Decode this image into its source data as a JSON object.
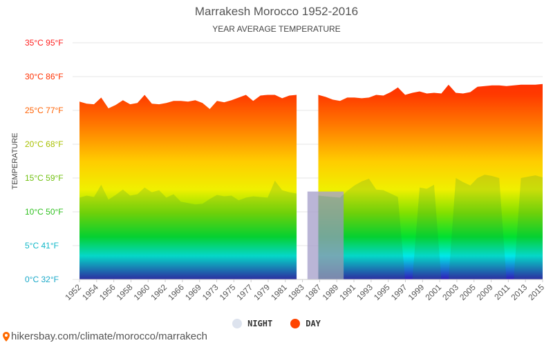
{
  "title": "Marrakesh Morocco 1952-2016",
  "subtitle": "YEAR AVERAGE TEMPERATURE",
  "legend": {
    "night": "NIGHT",
    "day": "DAY"
  },
  "source": "hikersbay.com/climate/morocco/marrakech",
  "colors": {
    "night_legend": "#dde3ee",
    "day_legend": "#ff4400",
    "gap_night": "#a9a3cc",
    "axis_text": "#555555"
  },
  "chart_data": {
    "type": "area",
    "ylabel": "TEMPERATURE",
    "ylim": [
      0,
      35
    ],
    "y_ticks": [
      {
        "value": 0,
        "label": "0°C 32°F",
        "color": "#18a8c8"
      },
      {
        "value": 5,
        "label": "5°C 41°F",
        "color": "#10b8c8"
      },
      {
        "value": 10,
        "label": "10°C 50°F",
        "color": "#30c020"
      },
      {
        "value": 15,
        "label": "15°C 59°F",
        "color": "#70c010"
      },
      {
        "value": 20,
        "label": "20°C 68°F",
        "color": "#a8c000"
      },
      {
        "value": 25,
        "label": "25°C 77°F",
        "color": "#ff6000"
      },
      {
        "value": 30,
        "label": "30°C 86°F",
        "color": "#ff3000"
      },
      {
        "value": 35,
        "label": "35°C 95°F",
        "color": "#ff2020"
      }
    ],
    "x_tick_labels": [
      "1952",
      "1954",
      "1956",
      "1958",
      "1960",
      "1962",
      "1966",
      "1969",
      "1973",
      "1975",
      "1977",
      "1979",
      "1981",
      "1983",
      "1987",
      "1989",
      "1991",
      "1993",
      "1995",
      "1997",
      "1999",
      "2001",
      "2003",
      "2005",
      "2009",
      "2011",
      "2013",
      "2015"
    ],
    "grid": true,
    "legend_position": "bottom-center",
    "series": [
      {
        "name": "DAY",
        "x": [
          1952,
          1953,
          1954,
          1955,
          1956,
          1957,
          1958,
          1959,
          1960,
          1961,
          1962,
          1963,
          1964,
          1965,
          1966,
          1967,
          1968,
          1969,
          1970,
          1971,
          1972,
          1973,
          1974,
          1975,
          1976,
          1977,
          1978,
          1979,
          1980,
          1981,
          1982,
          1983,
          1984,
          1985,
          1986,
          1987,
          1988,
          1989,
          1990,
          1991,
          1992,
          1993,
          1994,
          1995,
          1996,
          1997,
          1998,
          1999,
          2000,
          2001,
          2002,
          2003,
          2004,
          2005,
          2006,
          2007,
          2008,
          2009,
          2010,
          2011,
          2012,
          2013,
          2014,
          2015,
          2016
        ],
        "values": [
          26.3,
          26,
          25.9,
          26.9,
          25.3,
          25.8,
          26.5,
          25.9,
          26.1,
          27.3,
          26,
          25.9,
          26.1,
          26.4,
          26.4,
          26.3,
          26.5,
          26.1,
          25.2,
          26.4,
          26.2,
          26.5,
          26.9,
          27.3,
          26.4,
          27.2,
          27.3,
          27.3,
          26.8,
          27.2,
          27.3,
          null,
          null,
          27.3,
          27,
          26.6,
          26.4,
          26.9,
          26.9,
          26.8,
          26.9,
          27.3,
          27.2,
          27.7,
          28.4,
          27.3,
          27.6,
          27.8,
          27.5,
          27.6,
          27.5,
          28.8,
          27.6,
          27.5,
          27.7,
          28.5,
          28.6,
          28.7,
          28.7,
          28.6,
          28.7,
          28.8,
          28.8,
          28.8,
          28.9
        ]
      },
      {
        "name": "NIGHT",
        "x": [
          1952,
          1953,
          1954,
          1955,
          1956,
          1957,
          1958,
          1959,
          1960,
          1961,
          1962,
          1963,
          1964,
          1965,
          1966,
          1967,
          1968,
          1969,
          1970,
          1971,
          1972,
          1973,
          1974,
          1975,
          1976,
          1977,
          1978,
          1979,
          1980,
          1981,
          1982,
          1983,
          1984,
          1985,
          1986,
          1987,
          1988,
          1989,
          1990,
          1991,
          1992,
          1993,
          1994,
          1995,
          1996,
          1997,
          1998,
          1999,
          2000,
          2001,
          2002,
          2003,
          2004,
          2005,
          2006,
          2007,
          2008,
          2009,
          2010,
          2011,
          2012,
          2013,
          2014,
          2015,
          2016
        ],
        "values": [
          12.1,
          12.4,
          12.2,
          14,
          11.8,
          12.5,
          13.3,
          12.4,
          12.6,
          13.6,
          12.9,
          13.2,
          12.1,
          12.6,
          11.5,
          11.3,
          11.1,
          11.2,
          11.9,
          12.5,
          12.3,
          12.4,
          11.7,
          12.1,
          12.3,
          12.2,
          12.1,
          14.6,
          13.2,
          12.9,
          12.7,
          null,
          null,
          12.4,
          12.3,
          12.2,
          12.1,
          13.1,
          13.9,
          14.5,
          14.9,
          13.3,
          13.2,
          12.7,
          12.2,
          0,
          0,
          13.6,
          13.4,
          14,
          0,
          0,
          15,
          14.4,
          13.9,
          15,
          15.5,
          15.3,
          15,
          0,
          0,
          15,
          15.2,
          15.4,
          15.1
        ]
      }
    ],
    "missing_years": [
      1984,
      1985,
      1986,
      1987,
      1988
    ],
    "annotations": []
  }
}
